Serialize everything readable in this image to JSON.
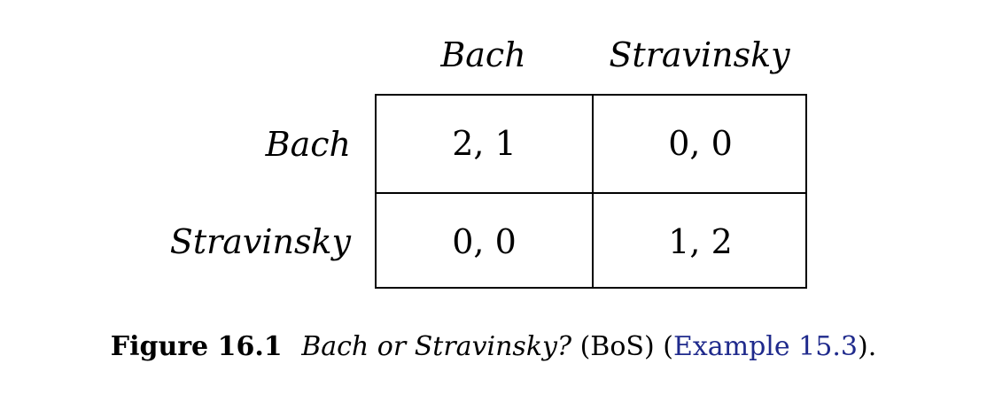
{
  "matrix": {
    "column_headers": [
      "Bach",
      "Stravinsky"
    ],
    "row_headers": [
      "Bach",
      "Stravinsky"
    ],
    "cells": [
      [
        "2, 1",
        "0, 0"
      ],
      [
        "0, 0",
        "1, 2"
      ]
    ]
  },
  "caption": {
    "label": "Figure 16.1",
    "title": "Bach or Stravinsky?",
    "abbrev": "(BoS)",
    "ref_open": "(",
    "ref_link": "Example 15.3",
    "ref_close": ").",
    "link_color": "#1f2a8c"
  }
}
